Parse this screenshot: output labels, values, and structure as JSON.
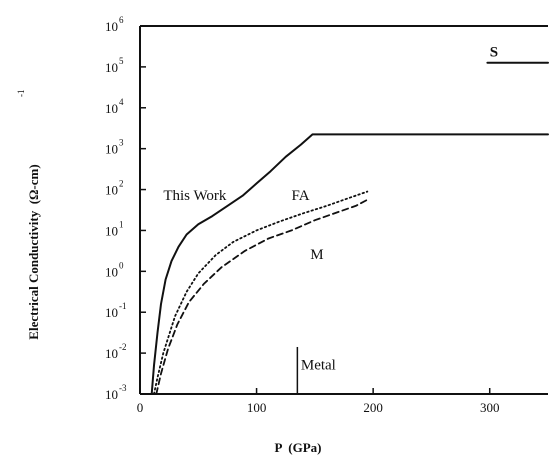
{
  "chart_data": {
    "type": "line",
    "xlabel": "P  (GPa)",
    "ylabel": "Electrical Conductivity  (Ω-cm)",
    "ylabel_exponent": "-1",
    "xlim": [
      0,
      350
    ],
    "ylim_log10": [
      -3,
      6
    ],
    "yscale": "log",
    "grid": false,
    "x_ticks": [
      "0",
      "100",
      "200",
      "300"
    ],
    "x_tick_values": [
      0,
      100,
      200,
      300
    ],
    "y_ticks": [
      {
        "base": "10",
        "exp": "-3",
        "value": -3
      },
      {
        "base": "10",
        "exp": "-2",
        "value": -2
      },
      {
        "base": "10",
        "exp": "-1",
        "value": -1
      },
      {
        "base": "10",
        "exp": "0",
        "value": 0
      },
      {
        "base": "10",
        "exp": "1",
        "value": 1
      },
      {
        "base": "10",
        "exp": "2",
        "value": 2
      },
      {
        "base": "10",
        "exp": "3",
        "value": 3
      },
      {
        "base": "10",
        "exp": "4",
        "value": 4
      },
      {
        "base": "10",
        "exp": "5",
        "value": 5
      },
      {
        "base": "10",
        "exp": "6",
        "value": 6
      }
    ],
    "series": [
      {
        "name": "This Work",
        "style": "solid",
        "x": [
          10,
          12,
          15,
          18,
          22,
          27,
          33,
          40,
          50,
          62,
          75,
          88,
          100,
          112,
          125,
          138,
          148,
          350
        ],
        "log10_y": [
          -3,
          -2.3,
          -1.5,
          -0.8,
          -0.2,
          0.25,
          0.6,
          0.9,
          1.15,
          1.35,
          1.6,
          1.85,
          2.15,
          2.45,
          2.8,
          3.1,
          3.35,
          3.35
        ]
      },
      {
        "name": "FA",
        "style": "dotted",
        "x": [
          12,
          15,
          20,
          30,
          40,
          50,
          65,
          80,
          100,
          120,
          140,
          160,
          180,
          195
        ],
        "log10_y": [
          -3,
          -2.6,
          -2.0,
          -1.1,
          -0.5,
          -0.05,
          0.4,
          0.72,
          1.0,
          1.22,
          1.42,
          1.6,
          1.8,
          1.95
        ]
      },
      {
        "name": "M",
        "style": "dashed",
        "x": [
          14,
          18,
          24,
          32,
          42,
          55,
          70,
          90,
          110,
          130,
          150,
          170,
          185,
          195
        ],
        "log10_y": [
          -3,
          -2.5,
          -1.9,
          -1.3,
          -0.75,
          -0.3,
          0.1,
          0.5,
          0.8,
          1.0,
          1.25,
          1.45,
          1.6,
          1.75
        ]
      },
      {
        "name": "S",
        "style": "solid",
        "x": [
          298,
          350
        ],
        "log10_y": [
          5.1,
          5.1
        ]
      }
    ],
    "annotations": [
      {
        "text": "This Work",
        "x": 20,
        "log10_y": 1.75,
        "style": "normal"
      },
      {
        "text": "FA",
        "x": 130,
        "log10_y": 1.75,
        "style": "normal"
      },
      {
        "text": "M",
        "x": 146,
        "log10_y": 0.3,
        "style": "normal"
      },
      {
        "text": "S",
        "x": 300,
        "log10_y": 5.25,
        "style": "bold"
      },
      {
        "text": "Metal",
        "x": 138,
        "log10_y": -2.4,
        "style": "normal"
      }
    ],
    "marker": {
      "name": "Metal",
      "x": 135,
      "log10_y_range": [
        -3,
        -1.85
      ]
    }
  }
}
